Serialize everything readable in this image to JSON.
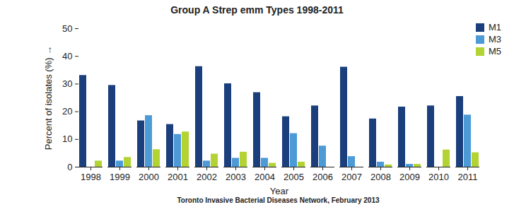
{
  "chart_data": {
    "type": "bar",
    "title": "Group A Strep emm Types 1998-2011",
    "caption": "Toronto Invasive Bacterial Diseases Network, February 2013",
    "x_label": "Year",
    "y_label": "Percent of isolates (%)",
    "categories": [
      "1998",
      "1999",
      "2000",
      "2001",
      "2002",
      "2003",
      "2004",
      "2005",
      "2006",
      "2007",
      "2008",
      "2009",
      "2010",
      "2011"
    ],
    "series": [
      {
        "name": "M1",
        "color": "#1a3f7c",
        "values": [
          33.1,
          29.5,
          16.7,
          15.4,
          36.3,
          30.1,
          26.9,
          18.2,
          22.1,
          36.1,
          17.4,
          21.7,
          22.1,
          25.5
        ]
      },
      {
        "name": "M3",
        "color": "#4c9ad6",
        "values": [
          0,
          2.2,
          18.6,
          11.8,
          2.2,
          3.2,
          3.2,
          12.1,
          7.6,
          3.8,
          1.8,
          1.0,
          0,
          18.8
        ]
      },
      {
        "name": "M5",
        "color": "#b3d335",
        "values": [
          2.2,
          3.5,
          6.3,
          12.7,
          4.7,
          5.4,
          1.4,
          1.8,
          0,
          0,
          0.8,
          1.0,
          6.2,
          5.2
        ]
      }
    ],
    "ylim": [
      0,
      50
    ],
    "yticks": [
      0,
      10,
      20,
      30,
      40,
      50
    ],
    "grid": false,
    "legend": "top-right"
  }
}
